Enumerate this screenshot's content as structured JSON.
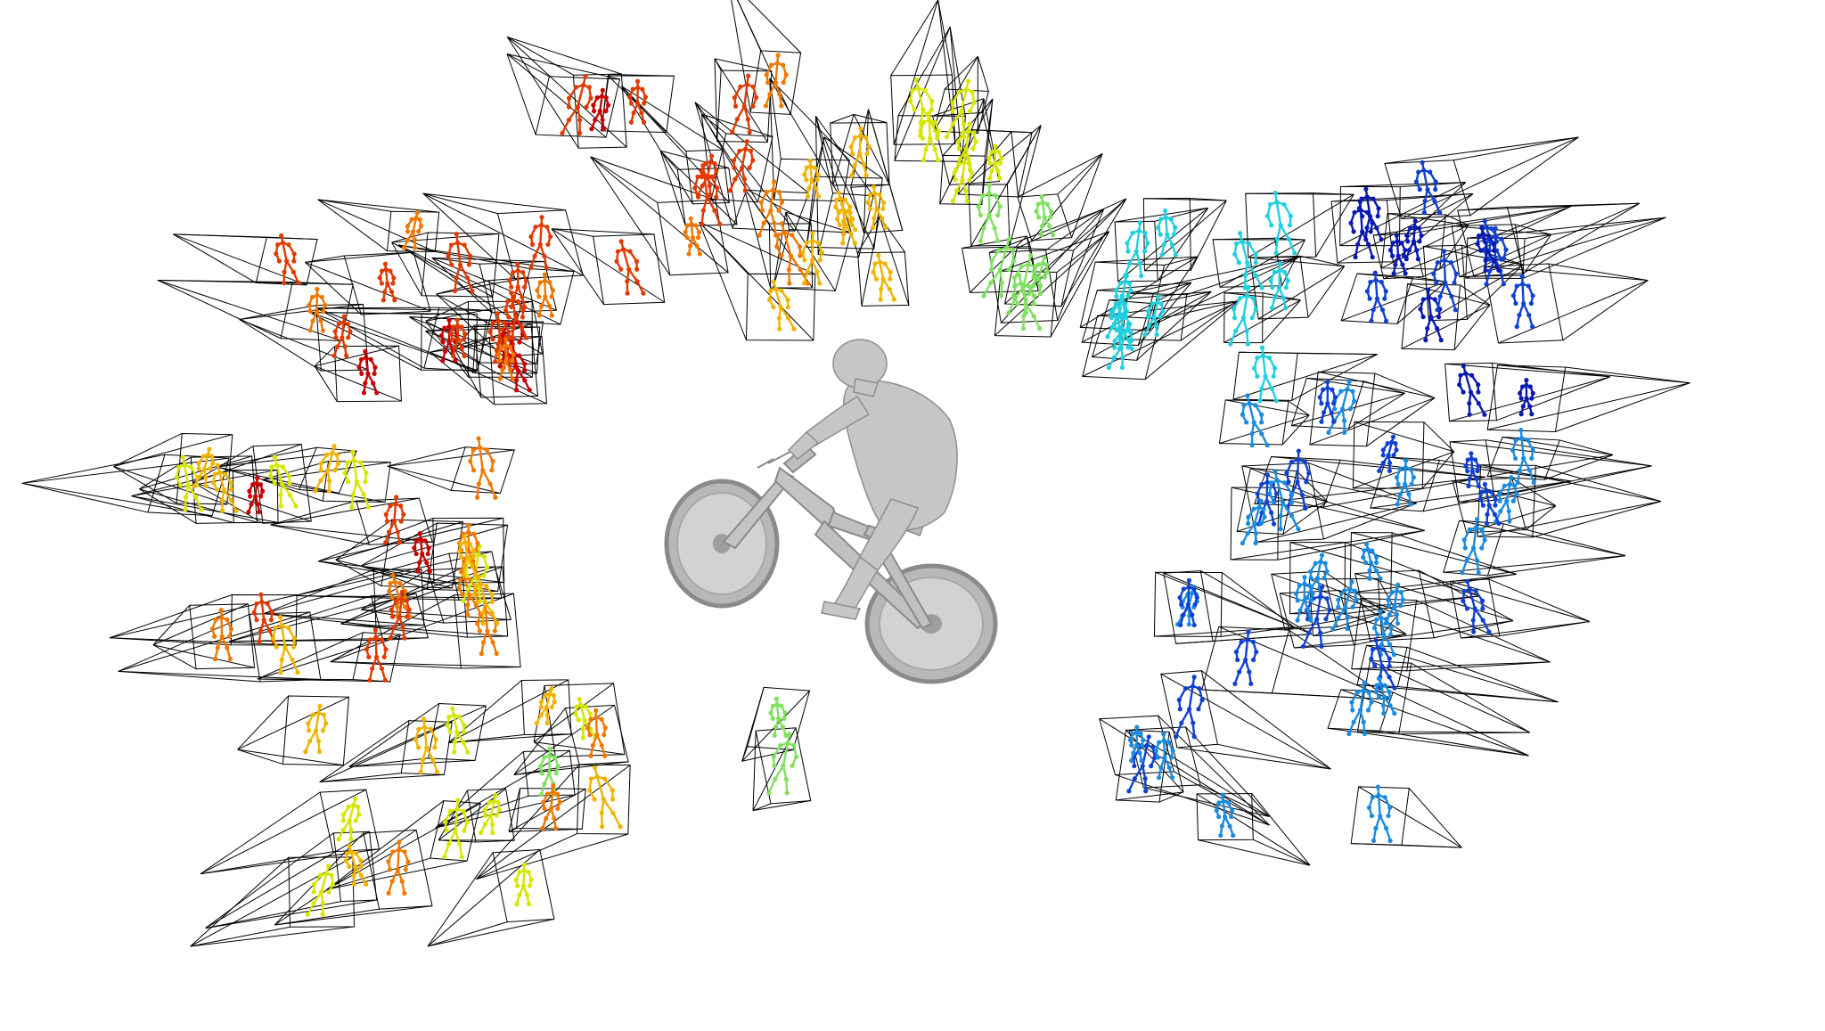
{
  "scene": {
    "background_color": "#ffffff",
    "frustum_line_color": "#000000",
    "subject": "cyclist-on-mountain-bike",
    "subject_color": "#c8c8c8",
    "pose_color_scale": [
      "#c80000",
      "#e03a00",
      "#f07800",
      "#f0b400",
      "#d6e600",
      "#80e060",
      "#20d0e0",
      "#1a8ce0",
      "#1040d0",
      "#0818b0"
    ],
    "camera_count": 150
  }
}
